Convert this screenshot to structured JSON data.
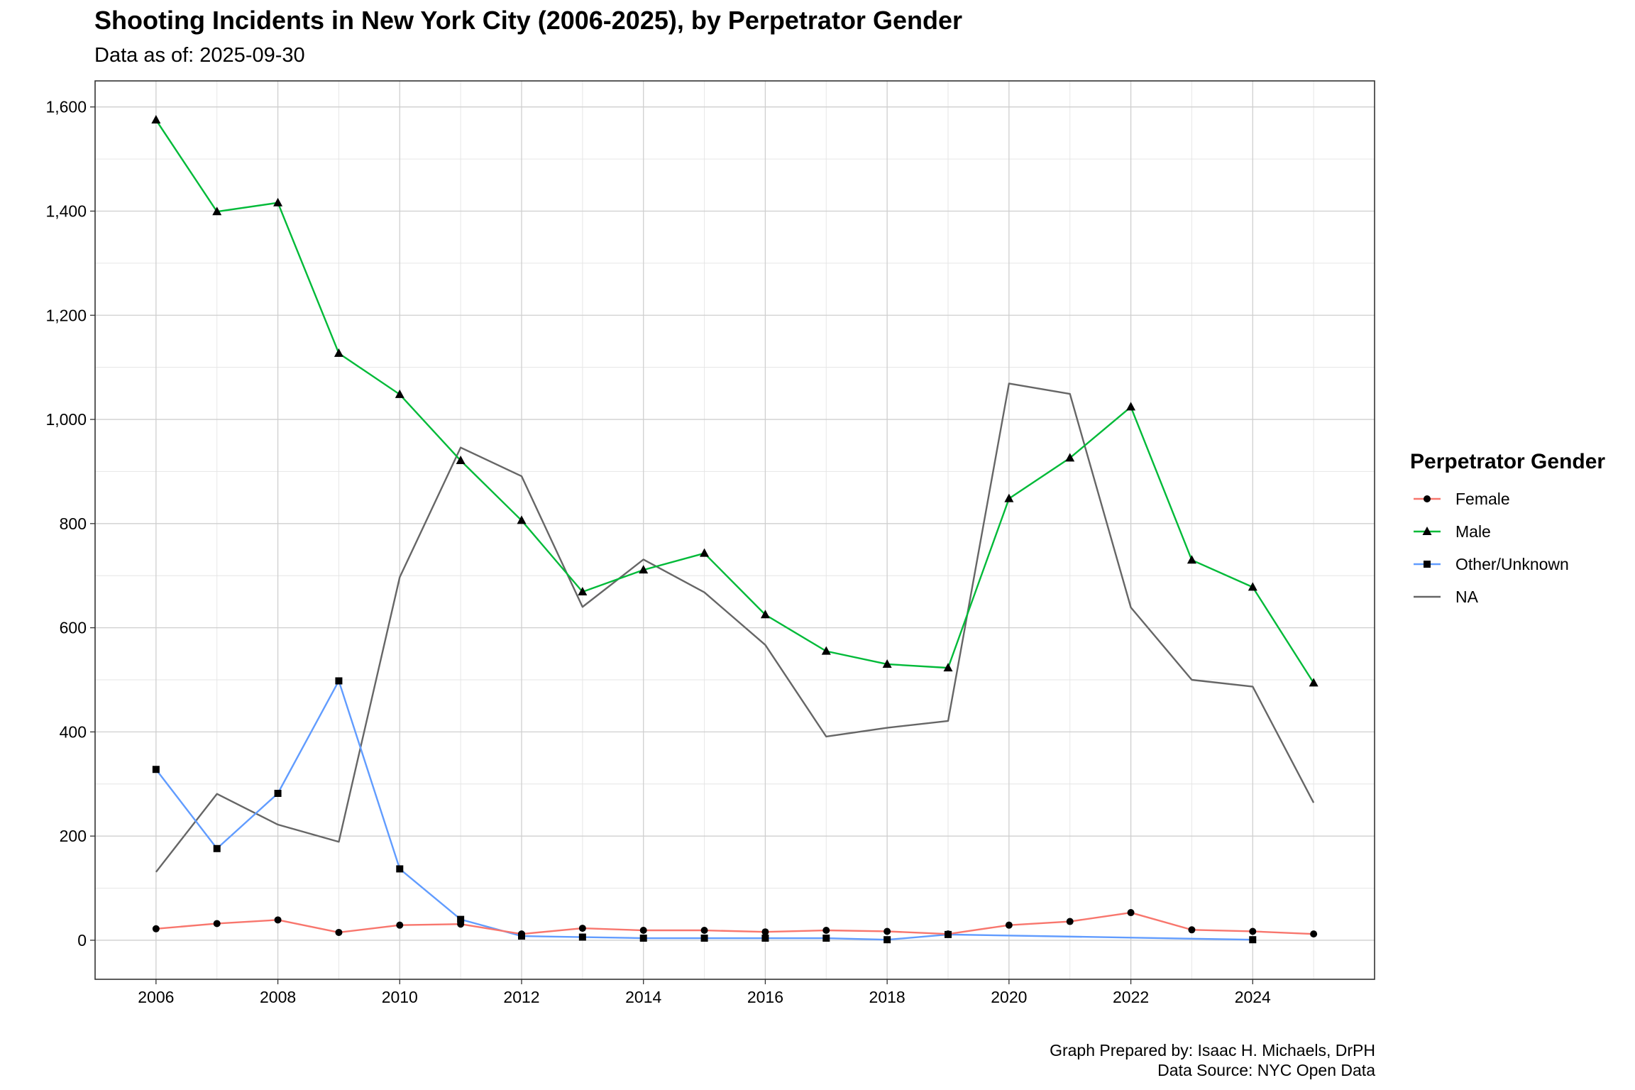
{
  "chart_data": {
    "type": "line",
    "title": "Shooting Incidents in New York City (2006-2025), by Perpetrator Gender",
    "subtitle": "Data as of: 2025-09-30",
    "xlabel": "",
    "ylabel": "",
    "xlim": [
      2005,
      2026
    ],
    "ylim": [
      -75,
      1650
    ],
    "x_ticks": [
      2006,
      2008,
      2010,
      2012,
      2014,
      2016,
      2018,
      2020,
      2022,
      2024
    ],
    "x_tick_labels": [
      "2006",
      "2008",
      "2010",
      "2012",
      "2014",
      "2016",
      "2018",
      "2020",
      "2022",
      "2024"
    ],
    "y_ticks": [
      0,
      200,
      400,
      600,
      800,
      1000,
      1200,
      1400,
      1600
    ],
    "y_tick_labels": [
      "0",
      "200",
      "400",
      "600",
      "800",
      "1,000",
      "1,200",
      "1,400",
      "1,600"
    ],
    "grid": true,
    "legend": {
      "title": "Perpetrator Gender",
      "position": "right"
    },
    "series": [
      {
        "name": "Female",
        "color": "#F8766D",
        "marker": "circle",
        "x": [
          2006,
          2007,
          2008,
          2009,
          2010,
          2011,
          2012,
          2013,
          2014,
          2015,
          2016,
          2017,
          2018,
          2019,
          2020,
          2021,
          2022,
          2023,
          2024,
          2025
        ],
        "values": [
          22,
          32,
          39,
          15,
          29,
          31,
          12,
          23,
          19,
          19,
          16,
          19,
          17,
          12,
          29,
          36,
          53,
          20,
          17,
          12
        ]
      },
      {
        "name": "Male",
        "color": "#00BA38",
        "marker": "triangle",
        "x": [
          2006,
          2007,
          2008,
          2009,
          2010,
          2011,
          2012,
          2013,
          2014,
          2015,
          2016,
          2017,
          2018,
          2019,
          2020,
          2021,
          2022,
          2023,
          2024,
          2025
        ],
        "values": [
          1575,
          1399,
          1416,
          1127,
          1048,
          921,
          806,
          669,
          711,
          743,
          625,
          555,
          530,
          523,
          848,
          926,
          1024,
          730,
          678,
          494
        ]
      },
      {
        "name": "Other/Unknown",
        "color": "#619CFF",
        "marker": "square",
        "x": [
          2006,
          2007,
          2008,
          2009,
          2010,
          2011,
          2012,
          2013,
          2014,
          2015,
          2016,
          2017,
          2018,
          2019,
          2024
        ],
        "values": [
          328,
          176,
          282,
          498,
          137,
          40,
          8,
          6,
          4,
          4,
          4,
          4,
          1,
          11,
          1
        ]
      },
      {
        "name": "NA",
        "color": "#666666",
        "marker": "none",
        "x": [
          2006,
          2007,
          2008,
          2009,
          2010,
          2011,
          2012,
          2013,
          2014,
          2015,
          2016,
          2017,
          2018,
          2019,
          2020,
          2021,
          2022,
          2023,
          2024,
          2025
        ],
        "values": [
          131,
          281,
          222,
          189,
          697,
          946,
          891,
          640,
          731,
          668,
          567,
          391,
          408,
          421,
          1069,
          1049,
          639,
          500,
          487,
          264
        ]
      }
    ],
    "caption": [
      "Graph Prepared by: Isaac H. Michaels, DrPH",
      "Data Source: NYC Open Data"
    ]
  }
}
